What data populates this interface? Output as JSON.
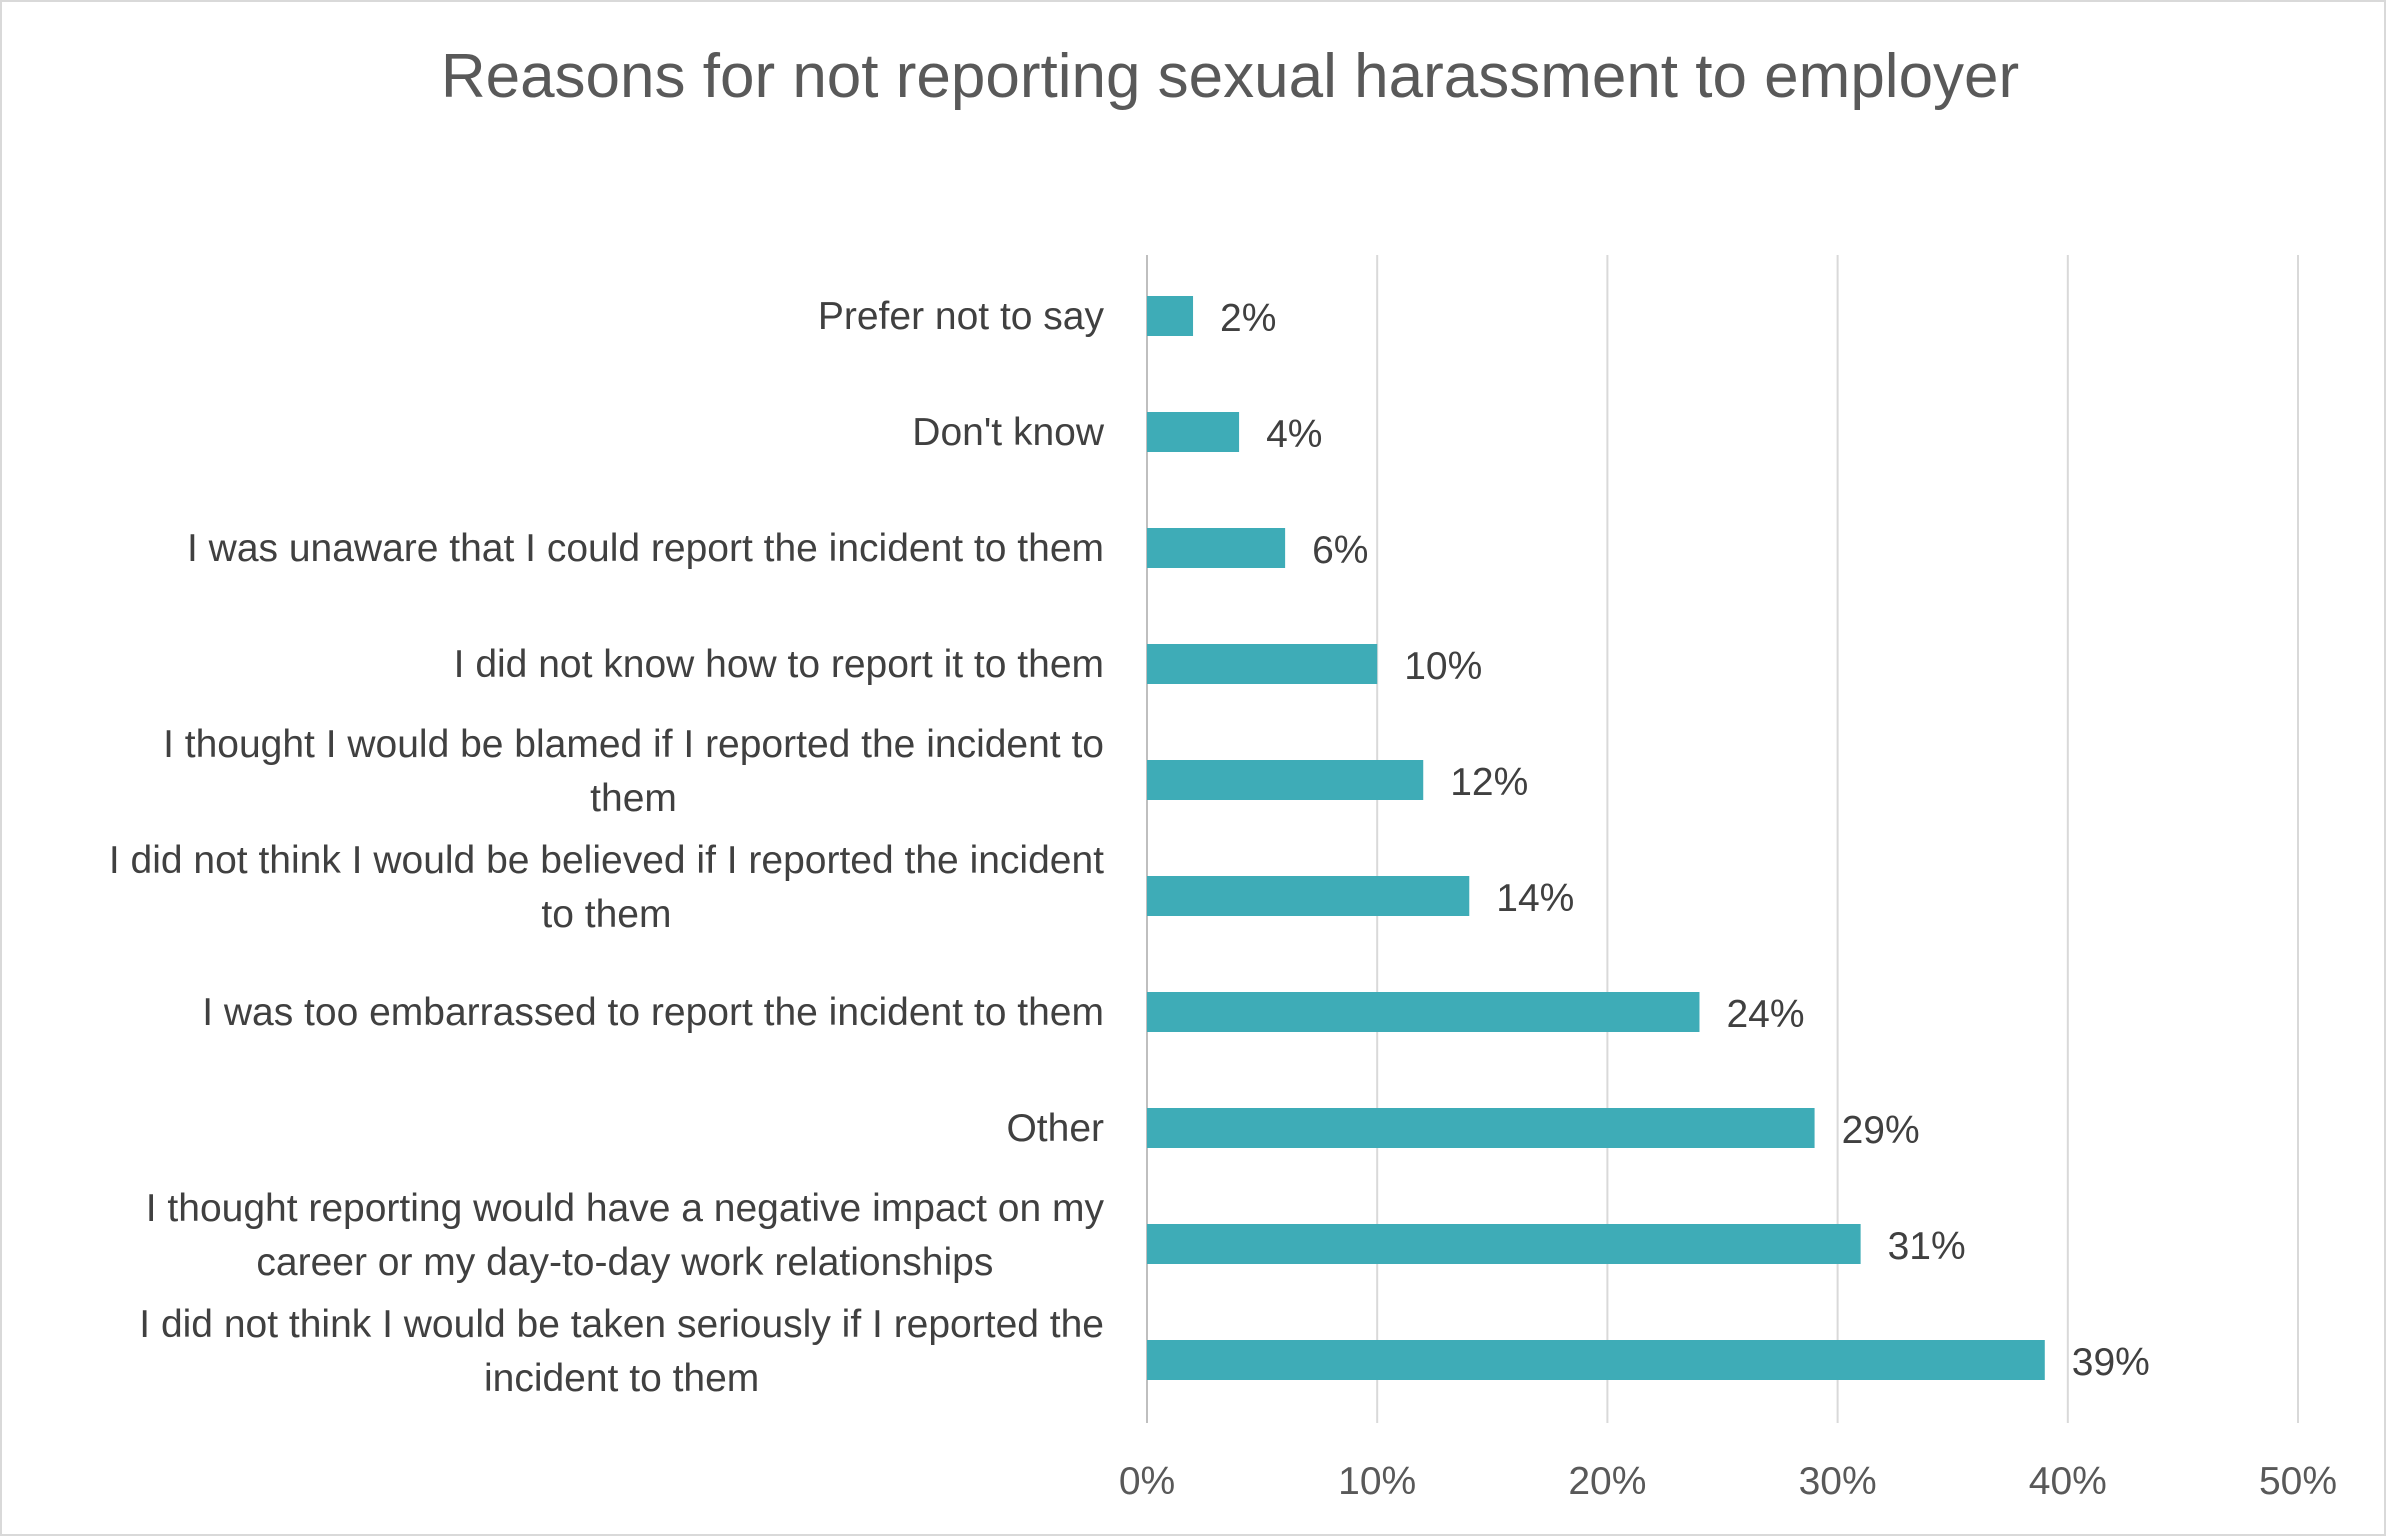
{
  "chart_data": {
    "type": "bar",
    "orientation": "horizontal",
    "title": "Reasons for not reporting sexual harassment to employer",
    "categories": [
      "Prefer not to say",
      "Don't know",
      "I was unaware that I could report the incident to them",
      "I did not know how to report it to them",
      "I thought I would be blamed if I reported the incident to them",
      "I did not think I would be believed if I reported the incident to them",
      "I was too embarrassed to report the incident to them",
      "Other",
      "I thought reporting would have a negative impact on my career or my day-to-day work relationships",
      "I did not think I would be taken seriously if I reported the incident to them"
    ],
    "category_lines": [
      [
        "Prefer not to say"
      ],
      [
        "Don't know"
      ],
      [
        "I was unaware that I could report the incident to them"
      ],
      [
        "I did not know how to report it to them"
      ],
      [
        "I thought I would be blamed if I reported the incident to",
        "them"
      ],
      [
        "I did not think I would be believed if I reported the incident",
        "to them"
      ],
      [
        "I was too embarrassed to report the incident to them"
      ],
      [
        "Other"
      ],
      [
        "I thought reporting would have a negative impact on my",
        "career or my day-to-day work relationships"
      ],
      [
        "I did not think I would be taken seriously if I reported the",
        "incident to them"
      ]
    ],
    "values": [
      2,
      4,
      6,
      10,
      12,
      14,
      24,
      29,
      31,
      39
    ],
    "data_labels": [
      "2%",
      "4%",
      "6%",
      "10%",
      "12%",
      "14%",
      "24%",
      "29%",
      "31%",
      "39%"
    ],
    "xlim": [
      0,
      50
    ],
    "xticks": [
      0,
      10,
      20,
      30,
      40,
      50
    ],
    "xtick_labels": [
      "0%",
      "10%",
      "20%",
      "30%",
      "40%",
      "50%"
    ],
    "xlabel": "",
    "ylabel": "",
    "grid": true,
    "legend": "none",
    "bar_color": "#3eacb7",
    "grid_color": "#d9d9d9",
    "axis_color": "#bfbfbf"
  }
}
